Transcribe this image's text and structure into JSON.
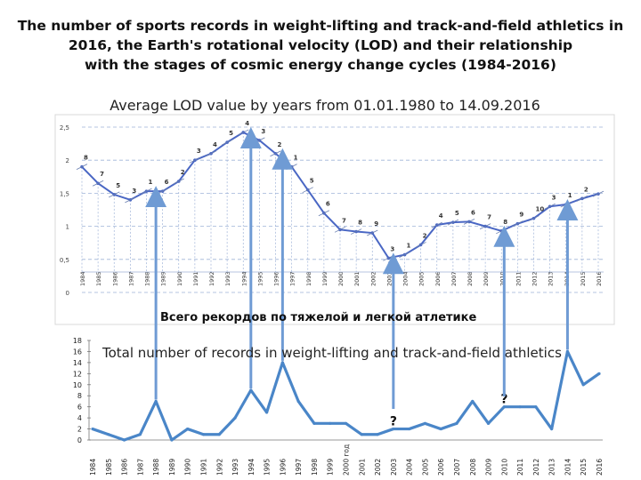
{
  "title_lines": [
    "The number of sports records in weight-lifting and track-and-field athletics in",
    "2016, the Earth's rotational velocity (LOD) and their relationship",
    "with the stages of cosmic energy change cycles (1984-2016)"
  ],
  "colors": {
    "line": "#4a67c4",
    "records_line": "#4a86c8",
    "arrow": "#6f9bd4",
    "grid": "#9fb3d8"
  },
  "chart_data": [
    {
      "type": "line",
      "title": "Average LOD value by years from 01.01.1980 to 14.09.2016",
      "categories": [
        "1984",
        "1985",
        "1986",
        "1987",
        "1988",
        "1989",
        "1990",
        "1991",
        "1992",
        "1993",
        "1994",
        "1995",
        "1996",
        "1997",
        "1998",
        "1999",
        "2000",
        "2001",
        "2002",
        "2003",
        "2004",
        "2005",
        "2006",
        "2007",
        "2008",
        "2009",
        "2010",
        "2011",
        "2012",
        "2013",
        "2014",
        "2015",
        "2016"
      ],
      "values": [
        1.9,
        1.65,
        1.48,
        1.4,
        1.53,
        1.53,
        1.68,
        2.0,
        2.1,
        2.27,
        2.42,
        2.3,
        2.1,
        1.9,
        1.55,
        1.2,
        0.95,
        0.92,
        0.9,
        0.52,
        0.57,
        0.72,
        1.02,
        1.06,
        1.07,
        1.0,
        0.93,
        1.04,
        1.12,
        1.3,
        1.33,
        1.42,
        1.49
      ],
      "ylim": [
        0,
        2.5
      ],
      "yticks": [
        "0",
        "0,5",
        "1",
        "1,5",
        "2",
        "2,5"
      ],
      "digit_labels": [
        "8",
        "7",
        "5",
        "3",
        "1",
        "6",
        "2",
        "3",
        "4",
        "5",
        "4",
        "3",
        "2",
        "1",
        "5",
        "6",
        "7",
        "8",
        "9",
        "3",
        "1",
        "2",
        "4",
        "5",
        "6",
        "7",
        "8",
        "9",
        "10",
        "3",
        "1",
        "2"
      ]
    },
    {
      "type": "line",
      "title": "Всего рекордов по тяжелой и легкой атлетике",
      "subtitle": "Total number of records in weight-lifting and track-and-field athletics",
      "categories": [
        "1984",
        "1985",
        "1986",
        "1987",
        "1988",
        "1989",
        "1990",
        "1991",
        "1992",
        "1993",
        "1994",
        "1995",
        "1996",
        "1997",
        "1998",
        "1999",
        "2000 год",
        "2001",
        "2002",
        "2003",
        "2004",
        "2005",
        "2006",
        "2007",
        "2008",
        "2009",
        "2010",
        "2011",
        "2012",
        "2013",
        "2014",
        "2015",
        "2016"
      ],
      "values": [
        2,
        1,
        0,
        1,
        7,
        0,
        2,
        1,
        1,
        4,
        9,
        5,
        14,
        7,
        3,
        3,
        3,
        1,
        1,
        2,
        2,
        3,
        2,
        3,
        7,
        3,
        6,
        6,
        6,
        2,
        16,
        10,
        12
      ],
      "ylim": [
        0,
        18
      ],
      "yticks": [
        "0",
        "2",
        "4",
        "6",
        "8",
        "10",
        "12",
        "14",
        "16",
        "18"
      ],
      "annotations": [
        "?",
        "?"
      ]
    }
  ]
}
